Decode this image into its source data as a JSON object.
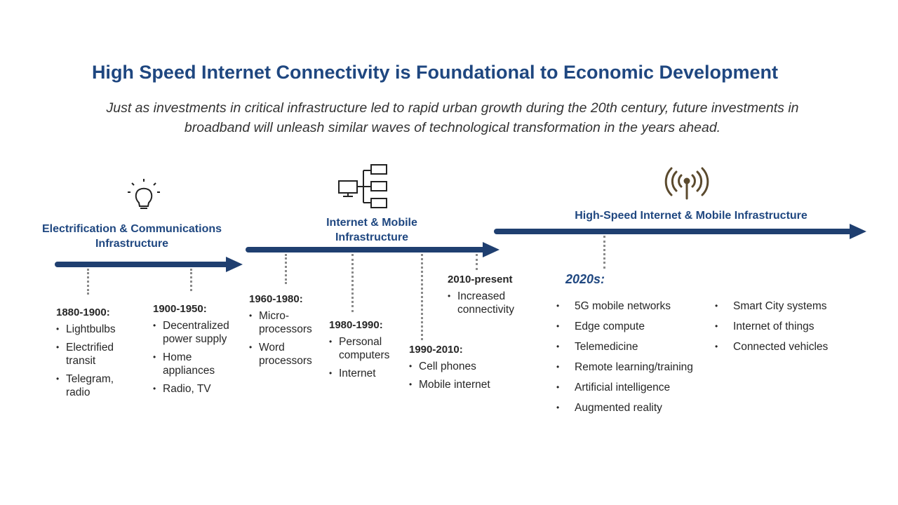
{
  "title": "High Speed Internet Connectivity is Foundational to Economic Development",
  "subtitle": "Just as investments in critical infrastructure led to rapid urban growth during the 20th century, future investments in broadband will unleash similar waves of technological transformation in the years ahead.",
  "phases": [
    {
      "label": "Electrification & Communications Infrastructure"
    },
    {
      "label": "Internet & Mobile Infrastructure"
    },
    {
      "label": "High-Speed Internet & Mobile Infrastructure"
    }
  ],
  "periods": [
    {
      "label": "1880-1900:",
      "items": [
        "Lightbulbs",
        "Electrified transit",
        "Telegram, radio"
      ]
    },
    {
      "label": "1900-1950:",
      "items": [
        "Decentralized power supply",
        "Home appliances",
        "Radio, TV"
      ]
    },
    {
      "label": "1960-1980:",
      "items": [
        "Micro-processors",
        "Word processors"
      ]
    },
    {
      "label": "1980-1990:",
      "items": [
        "Personal computers",
        "Internet"
      ]
    },
    {
      "label": "1990-2010:",
      "items": [
        "Cell phones",
        "Mobile internet"
      ]
    },
    {
      "label": "2010-present",
      "items": [
        "Increased connectivity"
      ]
    }
  ],
  "future": {
    "label": "2020s:",
    "columns": [
      [
        "5G mobile networks",
        "Edge compute",
        "Telemedicine",
        "Remote learning/training",
        "Artificial intelligence",
        "Augmented reality"
      ],
      [
        "Smart City systems",
        "Internet of things",
        "Connected vehicles"
      ]
    ]
  }
}
